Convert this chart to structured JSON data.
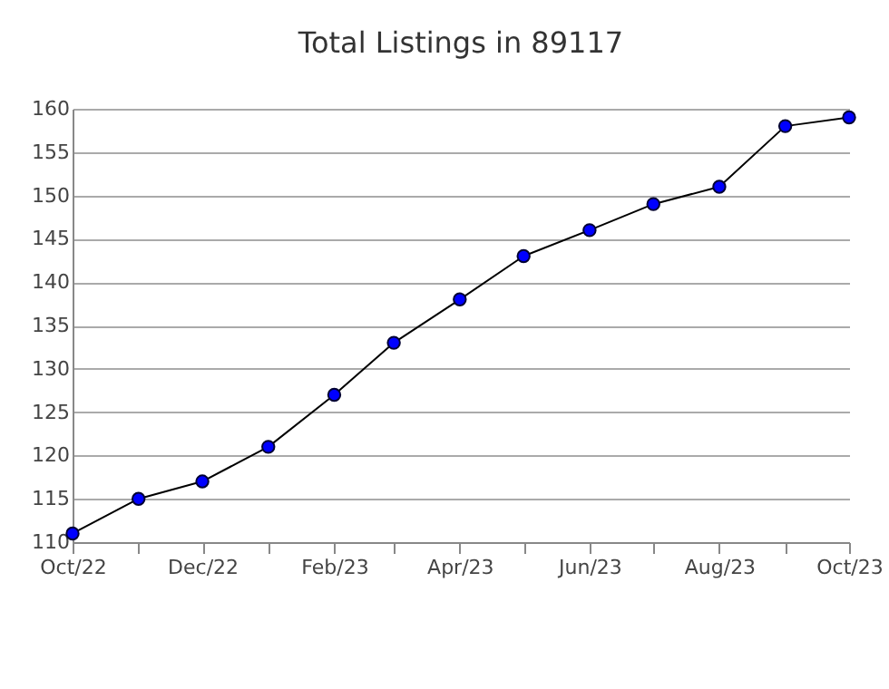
{
  "chart_data": {
    "type": "line",
    "title": "Total Listings in 89117",
    "x": [
      "2022-10",
      "2022-11",
      "2022-12",
      "2023-01",
      "2023-02",
      "2023-03",
      "2023-04",
      "2023-05",
      "2023-06",
      "2023-07",
      "2023-08",
      "2023-09",
      "2023-10"
    ],
    "series": [
      {
        "color": "#0000ff",
        "values": [
          111,
          115,
          117,
          121,
          127,
          133,
          138,
          143,
          146,
          149,
          151,
          158,
          159
        ]
      }
    ],
    "xlim": [
      "2022-10",
      "2023-10"
    ],
    "xticks": [
      {
        "value": "2022-10",
        "label": "Oct/22"
      },
      {
        "value": "2022-11",
        "label": null
      },
      {
        "value": "2022-12",
        "label": "Dec/22"
      },
      {
        "value": "2023-01",
        "label": null
      },
      {
        "value": "2023-02",
        "label": "Feb/23"
      },
      {
        "value": "2023-03",
        "label": null
      },
      {
        "value": "2023-04",
        "label": "Apr/23"
      },
      {
        "value": "2023-05",
        "label": null
      },
      {
        "value": "2023-06",
        "label": "Jun/23"
      },
      {
        "value": "2023-07",
        "label": null
      },
      {
        "value": "2023-08",
        "label": "Aug/23"
      },
      {
        "value": "2023-09",
        "label": null
      },
      {
        "value": "2023-10",
        "label": "Oct/23"
      }
    ],
    "ylim": [
      110,
      160
    ],
    "yticks": [
      110,
      115,
      120,
      125,
      130,
      135,
      140,
      145,
      150,
      155,
      160
    ],
    "grid": "y",
    "marker": "circle",
    "line_style": "solid"
  }
}
